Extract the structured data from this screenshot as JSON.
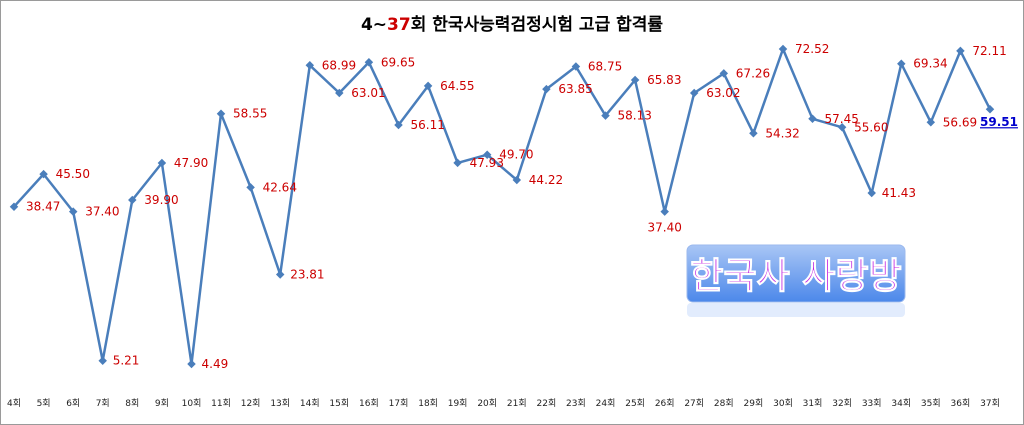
{
  "chart_data": {
    "type": "line",
    "title_prefix": "4~",
    "title_highlight": "37",
    "title_suffix": "회 한국사능력검정시험 고급 합격률",
    "categories": [
      "4회",
      "5회",
      "6회",
      "7회",
      "8회",
      "9회",
      "10회",
      "11회",
      "12회",
      "13회",
      "14회",
      "15회",
      "16회",
      "17회",
      "18회",
      "19회",
      "20회",
      "21회",
      "22회",
      "23회",
      "24회",
      "25회",
      "26회",
      "27회",
      "28회",
      "29회",
      "30회",
      "31회",
      "32회",
      "33회",
      "34회",
      "35회",
      "36회",
      "37회"
    ],
    "series": [
      {
        "values": [
          38.47,
          45.5,
          37.4,
          5.21,
          39.9,
          47.9,
          4.49,
          58.55,
          42.64,
          23.81,
          68.99,
          63.01,
          69.65,
          56.11,
          64.55,
          47.93,
          49.7,
          44.22,
          63.85,
          68.75,
          58.13,
          65.83,
          37.4,
          63.02,
          67.26,
          54.32,
          72.52,
          57.45,
          55.6,
          41.43,
          69.34,
          56.69,
          72.11,
          59.51
        ],
        "labels": [
          "38.47",
          "45.50",
          "37.40",
          "5.21",
          "39.90",
          "47.90",
          "4.49",
          "58.55",
          "42.64",
          "23.81",
          "68.99",
          "63.01",
          "69.65",
          "56.11",
          "64.55",
          "47.93",
          "49.70",
          "44.22",
          "63.85",
          "68.75",
          "58.13",
          "65.83",
          "37.40",
          "63.02",
          "67.26",
          "54.32",
          "72.52",
          "57.45",
          "55.60",
          "41.43",
          "69.34",
          "56.69",
          "72.11",
          "59.51"
        ]
      }
    ],
    "xlabel": "",
    "ylabel": "",
    "grid": false,
    "legend": "none"
  },
  "badge": {
    "text": "한국사 사랑방"
  },
  "colors": {
    "line": "#4a7ebb",
    "label": "#cc0000",
    "last_label": "#0000cc",
    "title": "#000000",
    "title_highlight": "#cc0000",
    "badge_fill_top": "#a9c6f5",
    "badge_fill_bottom": "#4c88ea",
    "badge_text": "#c020e0"
  }
}
